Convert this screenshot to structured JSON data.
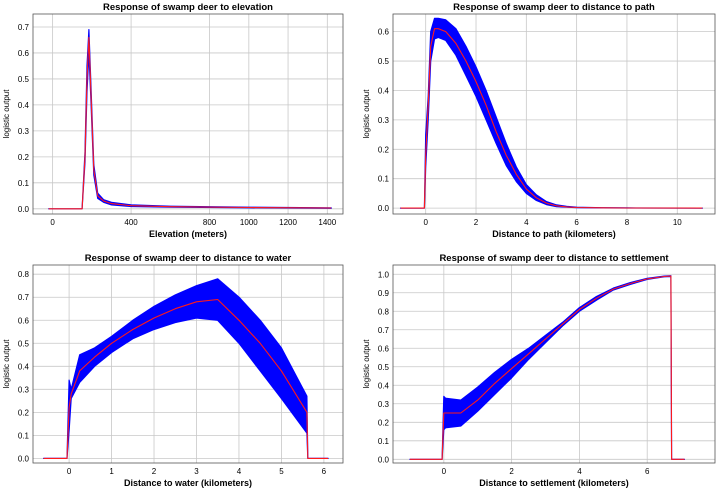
{
  "colors": {
    "band": "#0000ff",
    "mean": "#ff1a1a",
    "grid": "#c8c8c8"
  },
  "chart_data": [
    {
      "type": "area",
      "title": "Response of swamp deer to elevation",
      "xlabel": "Elevation (meters)",
      "ylabel": "logistic output",
      "xlim": [
        -100,
        1480
      ],
      "ylim": [
        -0.02,
        0.75
      ],
      "xticks": [
        0,
        400,
        800,
        1000,
        1200,
        1400
      ],
      "yticks": [
        0.0,
        0.1,
        0.2,
        0.3,
        0.4,
        0.5,
        0.6,
        0.7
      ],
      "series": [
        {
          "name": "mean",
          "x": [
            -20,
            150,
            165,
            175,
            185,
            195,
            210,
            230,
            260,
            300,
            400,
            600,
            1000,
            1420
          ],
          "y": [
            0,
            0,
            0.2,
            0.5,
            0.66,
            0.45,
            0.15,
            0.05,
            0.03,
            0.02,
            0.012,
            0.008,
            0.005,
            0.003
          ]
        },
        {
          "name": "upper",
          "x": [
            -20,
            150,
            165,
            175,
            185,
            195,
            210,
            230,
            260,
            300,
            400,
            600,
            1000,
            1420
          ],
          "y": [
            0,
            0,
            0.22,
            0.55,
            0.69,
            0.48,
            0.17,
            0.06,
            0.035,
            0.025,
            0.015,
            0.01,
            0.006,
            0.004
          ]
        },
        {
          "name": "lower",
          "x": [
            -20,
            150,
            165,
            175,
            185,
            195,
            210,
            230,
            260,
            300,
            400,
            600,
            1000,
            1420
          ],
          "y": [
            0,
            0,
            0.18,
            0.45,
            0.6,
            0.42,
            0.13,
            0.04,
            0.025,
            0.015,
            0.009,
            0.006,
            0.004,
            0.002
          ]
        }
      ]
    },
    {
      "type": "area",
      "title": "Response of swamp deer to distance to path",
      "xlabel": "Distance to path (kilometers)",
      "ylabel": "logistic output",
      "xlim": [
        -1.3,
        11.5
      ],
      "ylim": [
        -0.02,
        0.66
      ],
      "xticks": [
        0,
        2,
        4,
        6,
        8,
        10
      ],
      "yticks": [
        0.0,
        0.1,
        0.2,
        0.3,
        0.4,
        0.5,
        0.6
      ],
      "series": [
        {
          "name": "mean",
          "x": [
            -1,
            -0.05,
            0,
            0.1,
            0.2,
            0.35,
            0.5,
            0.8,
            1.2,
            1.6,
            2.0,
            2.4,
            2.8,
            3.2,
            3.6,
            4.0,
            4.4,
            4.8,
            5.2,
            5.6,
            6.0,
            7.0,
            8.0,
            11.0
          ],
          "y": [
            0,
            0,
            0.18,
            0.35,
            0.55,
            0.61,
            0.61,
            0.6,
            0.56,
            0.5,
            0.43,
            0.35,
            0.26,
            0.18,
            0.115,
            0.065,
            0.035,
            0.017,
            0.008,
            0.004,
            0.002,
            0.001,
            0.0005,
            0
          ]
        },
        {
          "name": "upper",
          "x": [
            -1,
            -0.05,
            0,
            0.1,
            0.2,
            0.35,
            0.5,
            0.8,
            1.2,
            1.6,
            2.0,
            2.4,
            2.8,
            3.2,
            3.6,
            4.0,
            4.4,
            4.8,
            5.2,
            5.6,
            6.0,
            7.0,
            8.0,
            11.0
          ],
          "y": [
            0,
            0,
            0.25,
            0.38,
            0.6,
            0.645,
            0.645,
            0.64,
            0.61,
            0.55,
            0.48,
            0.4,
            0.31,
            0.22,
            0.14,
            0.08,
            0.045,
            0.022,
            0.011,
            0.006,
            0.003,
            0.0015,
            0.0008,
            0
          ]
        },
        {
          "name": "lower",
          "x": [
            -1,
            -0.05,
            0,
            0.1,
            0.2,
            0.35,
            0.5,
            0.8,
            1.2,
            1.6,
            2.0,
            2.4,
            2.8,
            3.2,
            3.6,
            4.0,
            4.4,
            4.8,
            5.2,
            5.6,
            6.0,
            7.0,
            8.0,
            11.0
          ],
          "y": [
            0,
            0,
            0.14,
            0.3,
            0.5,
            0.575,
            0.58,
            0.57,
            0.52,
            0.45,
            0.38,
            0.3,
            0.22,
            0.145,
            0.09,
            0.05,
            0.026,
            0.012,
            0.005,
            0.003,
            0.0015,
            0.0008,
            0.0003,
            0
          ]
        }
      ]
    },
    {
      "type": "area",
      "title": "Response of swamp deer to distance to water",
      "xlabel": "Distance to water (kilometers)",
      "ylabel": "logistic output",
      "xlim": [
        -0.85,
        6.45
      ],
      "ylim": [
        -0.02,
        0.84
      ],
      "xticks": [
        0,
        1,
        2,
        3,
        4,
        5,
        6
      ],
      "yticks": [
        0.0,
        0.1,
        0.2,
        0.3,
        0.4,
        0.5,
        0.6,
        0.7,
        0.8
      ],
      "series": [
        {
          "name": "mean",
          "x": [
            -0.6,
            -0.05,
            0,
            0.05,
            0.25,
            0.6,
            1.0,
            1.5,
            2.0,
            2.5,
            3.0,
            3.5,
            4.0,
            4.5,
            5.0,
            5.6,
            5.62,
            6.1
          ],
          "y": [
            0,
            0,
            0.22,
            0.28,
            0.38,
            0.44,
            0.5,
            0.56,
            0.61,
            0.65,
            0.68,
            0.69,
            0.6,
            0.5,
            0.38,
            0.2,
            0,
            0
          ]
        },
        {
          "name": "upper",
          "x": [
            -0.6,
            -0.05,
            0,
            0.05,
            0.25,
            0.6,
            1.0,
            1.5,
            2.0,
            2.5,
            3.0,
            3.5,
            4.0,
            4.5,
            5.0,
            5.6,
            5.62,
            6.1
          ],
          "y": [
            0,
            0,
            0.34,
            0.3,
            0.45,
            0.48,
            0.53,
            0.6,
            0.66,
            0.71,
            0.75,
            0.78,
            0.7,
            0.6,
            0.48,
            0.27,
            0,
            0
          ]
        },
        {
          "name": "lower",
          "x": [
            -0.6,
            -0.05,
            0,
            0.05,
            0.25,
            0.6,
            1.0,
            1.5,
            2.0,
            2.5,
            3.0,
            3.5,
            4.0,
            4.5,
            5.0,
            5.6,
            5.62,
            6.1
          ],
          "y": [
            0,
            0,
            0.12,
            0.26,
            0.33,
            0.4,
            0.46,
            0.52,
            0.56,
            0.59,
            0.61,
            0.6,
            0.5,
            0.38,
            0.26,
            0.11,
            0,
            0
          ]
        }
      ]
    },
    {
      "type": "area",
      "title": "Response of swamp deer to distance to settlement",
      "xlabel": "Distance to settlement (kilometers)",
      "ylabel": "logistic output",
      "xlim": [
        -1.5,
        8.0
      ],
      "ylim": [
        -0.02,
        1.05
      ],
      "xticks": [
        0,
        2,
        4,
        6
      ],
      "yticks": [
        0.0,
        0.1,
        0.2,
        0.3,
        0.4,
        0.5,
        0.6,
        0.7,
        0.8,
        0.9,
        1.0
      ],
      "series": [
        {
          "name": "mean",
          "x": [
            -1,
            -0.05,
            0,
            0.05,
            0.5,
            1.0,
            1.5,
            2.0,
            2.5,
            3.0,
            3.5,
            4.0,
            4.5,
            5.0,
            5.5,
            6.0,
            6.5,
            6.7,
            6.72,
            7.1
          ],
          "y": [
            0,
            0,
            0.25,
            0.25,
            0.25,
            0.32,
            0.41,
            0.49,
            0.57,
            0.65,
            0.73,
            0.81,
            0.87,
            0.92,
            0.95,
            0.975,
            0.988,
            0.99,
            0,
            0
          ]
        },
        {
          "name": "upper",
          "x": [
            -1,
            -0.05,
            0,
            0.05,
            0.5,
            1.0,
            1.5,
            2.0,
            2.5,
            3.0,
            3.5,
            4.0,
            4.5,
            5.0,
            5.5,
            6.0,
            6.5,
            6.7,
            6.72,
            7.1
          ],
          "y": [
            0,
            0,
            0.34,
            0.33,
            0.32,
            0.39,
            0.47,
            0.54,
            0.6,
            0.67,
            0.74,
            0.82,
            0.88,
            0.925,
            0.955,
            0.978,
            0.99,
            0.992,
            0,
            0
          ]
        },
        {
          "name": "lower",
          "x": [
            -1,
            -0.05,
            0,
            0.05,
            0.5,
            1.0,
            1.5,
            2.0,
            2.5,
            3.0,
            3.5,
            4.0,
            4.5,
            5.0,
            5.5,
            6.0,
            6.5,
            6.7,
            6.72,
            7.1
          ],
          "y": [
            0,
            0,
            0.16,
            0.17,
            0.18,
            0.26,
            0.35,
            0.44,
            0.54,
            0.63,
            0.72,
            0.8,
            0.86,
            0.915,
            0.945,
            0.972,
            0.986,
            0.988,
            0,
            0
          ]
        }
      ]
    }
  ]
}
